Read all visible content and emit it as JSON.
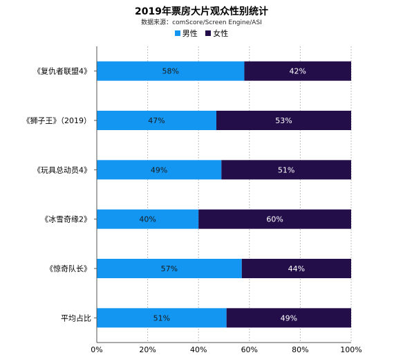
{
  "chart_data": {
    "type": "bar",
    "orientation": "horizontal",
    "stacked": true,
    "title": "2019年票房大片观众性别统计",
    "subtitle": "数据来源：comScore/Screen Engine/ASI",
    "categories": [
      "《复仇者联盟4》",
      "《狮子王》（2019）",
      "《玩具总动员4》",
      "《冰雪奇缘2》",
      "《惊奇队长》",
      "平均占比"
    ],
    "series": [
      {
        "name": "男性",
        "color": "#1296f2",
        "values": [
          58,
          47,
          49,
          40,
          57,
          51
        ],
        "labels": [
          "58%",
          "47%",
          "49%",
          "40%",
          "57%",
          "51%"
        ]
      },
      {
        "name": "女性",
        "color": "#230e4a",
        "values": [
          42,
          53,
          51,
          60,
          44,
          49
        ],
        "labels": [
          "42%",
          "53%",
          "51%",
          "60%",
          "44%",
          "49%"
        ]
      }
    ],
    "xlim": [
      0,
      100
    ],
    "xticks": [
      "0%",
      "20%",
      "40%",
      "60%",
      "80%",
      "100%"
    ],
    "grid": true,
    "legend_position": "top"
  }
}
